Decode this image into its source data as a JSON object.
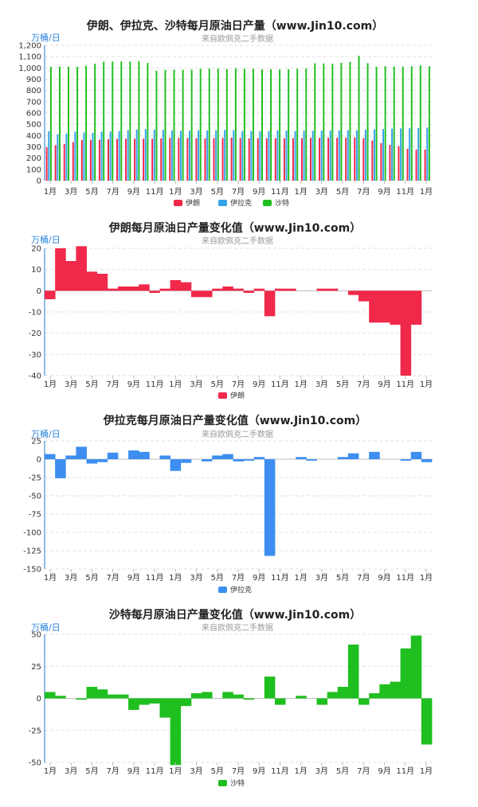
{
  "colors": {
    "iran": "#f0284a",
    "iraq": "#36a2eb",
    "saudi": "#1fbf1f"
  },
  "month_labels": [
    "1月",
    "3月",
    "5月",
    "7月",
    "9月",
    "11月",
    "1月",
    "3月",
    "5月",
    "7月",
    "9月",
    "11月",
    "1月",
    "3月",
    "5月",
    "7月",
    "9月",
    "11月",
    "1月"
  ],
  "chart_data": [
    {
      "type": "bar",
      "title": "伊朗、伊拉克、沙特每月原油日产量（www.Jin10.com）",
      "subtitle": "来自欧佩克二手数据",
      "unit": "万桶/日",
      "ylim": [
        0,
        1200
      ],
      "yticks": [
        0,
        100,
        200,
        300,
        400,
        500,
        600,
        700,
        800,
        900,
        1000,
        1100,
        1200
      ],
      "x_tick_labels": [
        "1月",
        "3月",
        "5月",
        "7月",
        "9月",
        "11月",
        "1月",
        "3月",
        "5月",
        "7月",
        "9月",
        "11月",
        "1月",
        "3月",
        "5月",
        "7月",
        "9月",
        "11月",
        "1月"
      ],
      "series": [
        {
          "name": "伊朗",
          "color": "#f0284a",
          "values": [
            296,
            316,
            326,
            342,
            362,
            362,
            363,
            367,
            370,
            372,
            372,
            372,
            371,
            375,
            379,
            379,
            379,
            376,
            375,
            377,
            379,
            382,
            378,
            375,
            377,
            376,
            376,
            376,
            377,
            377,
            380,
            379,
            380,
            380,
            380,
            383,
            377,
            356,
            334,
            318,
            306,
            283,
            276,
            275
          ]
        },
        {
          "name": "伊拉克",
          "color": "#36a2eb",
          "values": [
            438,
            412,
            418,
            436,
            428,
            424,
            434,
            436,
            440,
            448,
            454,
            458,
            452,
            452,
            445,
            442,
            443,
            447,
            446,
            446,
            451,
            448,
            441,
            440,
            438,
            440,
            446,
            445,
            441,
            443,
            443,
            443,
            445,
            445,
            447,
            448,
            452,
            455,
            458,
            461,
            463,
            465,
            467,
            470
          ]
        },
        {
          "name": "沙特",
          "color": "#1fbf1f",
          "values": [
            1010,
            1012,
            1011,
            1010,
            1019,
            1037,
            1055,
            1057,
            1057,
            1057,
            1061,
            1044,
            975,
            983,
            985,
            984,
            985,
            993,
            994,
            994,
            990,
            996,
            993,
            992,
            988,
            989,
            987,
            989,
            993,
            996,
            1041,
            1040,
            1037,
            1045,
            1053,
            1107,
            1042,
            1010,
            1015,
            1012,
            1011,
            1015,
            1023,
            1015
          ]
        }
      ]
    },
    {
      "type": "bar",
      "title": "伊朗每月原油日产量变化值（www.Jin10.com）",
      "subtitle": "来自欧佩克二手数据",
      "unit": "万桶/日",
      "ylim": [
        -40,
        20
      ],
      "yticks": [
        -40,
        -30,
        -20,
        -10,
        0,
        10,
        20
      ],
      "x_tick_labels": [
        "1月",
        "3月",
        "5月",
        "7月",
        "9月",
        "11月",
        "1月",
        "3月",
        "5月",
        "7月",
        "9月",
        "11月",
        "1月",
        "3月",
        "5月",
        "7月",
        "9月",
        "11月",
        "1月"
      ],
      "series": [
        {
          "name": "伊朗",
          "color": "#f0284a",
          "values": [
            -4,
            20,
            14,
            21,
            9,
            8,
            1,
            2,
            2,
            3,
            -1,
            1,
            5,
            4,
            -3,
            -3,
            1,
            2,
            1,
            -1,
            1,
            -12,
            1,
            1,
            0,
            0,
            1,
            1,
            0,
            -2,
            -5,
            -15,
            -15,
            -16,
            -40,
            -16,
            0
          ]
        }
      ]
    },
    {
      "type": "bar",
      "title": "伊拉克每月原油日产量变化值（www.Jin10.com）",
      "subtitle": "来自欧佩克二手数据",
      "unit": "万桶/日",
      "ylim": [
        -150,
        25
      ],
      "yticks": [
        -150,
        -125,
        -100,
        -75,
        -50,
        -25,
        0,
        25
      ],
      "x_tick_labels": [
        "1月",
        "3月",
        "5月",
        "7月",
        "9月",
        "11月",
        "1月",
        "3月",
        "5月",
        "7月",
        "9月",
        "11月",
        "1月",
        "3月",
        "5月",
        "7月",
        "9月",
        "11月",
        "1月"
      ],
      "series": [
        {
          "name": "伊拉克",
          "color": "#3d8ef0",
          "values": [
            7,
            -26,
            5,
            17,
            -6,
            -4,
            9,
            0,
            12,
            10,
            0,
            5,
            -16,
            -5,
            0,
            -3,
            5,
            7,
            -3,
            -2,
            3,
            -132,
            0,
            0,
            3,
            -2,
            0,
            0,
            3,
            8,
            0,
            10,
            0,
            0,
            -2,
            10,
            -4
          ]
        }
      ]
    },
    {
      "type": "bar",
      "title": "沙特每月原油日产量变化值（www.Jin10.com）",
      "subtitle": "来自欧佩克二手数据",
      "unit": "万桶/日",
      "ylim": [
        -50,
        50
      ],
      "yticks": [
        -50,
        -25,
        0,
        25,
        50
      ],
      "x_tick_labels": [
        "1月",
        "3月",
        "5月",
        "7月",
        "9月",
        "11月",
        "1月",
        "3月",
        "5月",
        "7月",
        "9月",
        "11月",
        "1月",
        "3月",
        "5月",
        "7月",
        "9月",
        "11月",
        "1月"
      ],
      "series": [
        {
          "name": "沙特",
          "color": "#1fbf1f",
          "values": [
            5,
            2,
            0,
            -1,
            9,
            7,
            3,
            3,
            -9,
            -5,
            -4,
            -15,
            -52,
            -6,
            4,
            5,
            0,
            5,
            3,
            -1,
            0,
            17,
            -5,
            0,
            2,
            0,
            -5,
            5,
            9,
            42,
            -5,
            4,
            11,
            13,
            39,
            49,
            -36
          ]
        }
      ]
    }
  ]
}
